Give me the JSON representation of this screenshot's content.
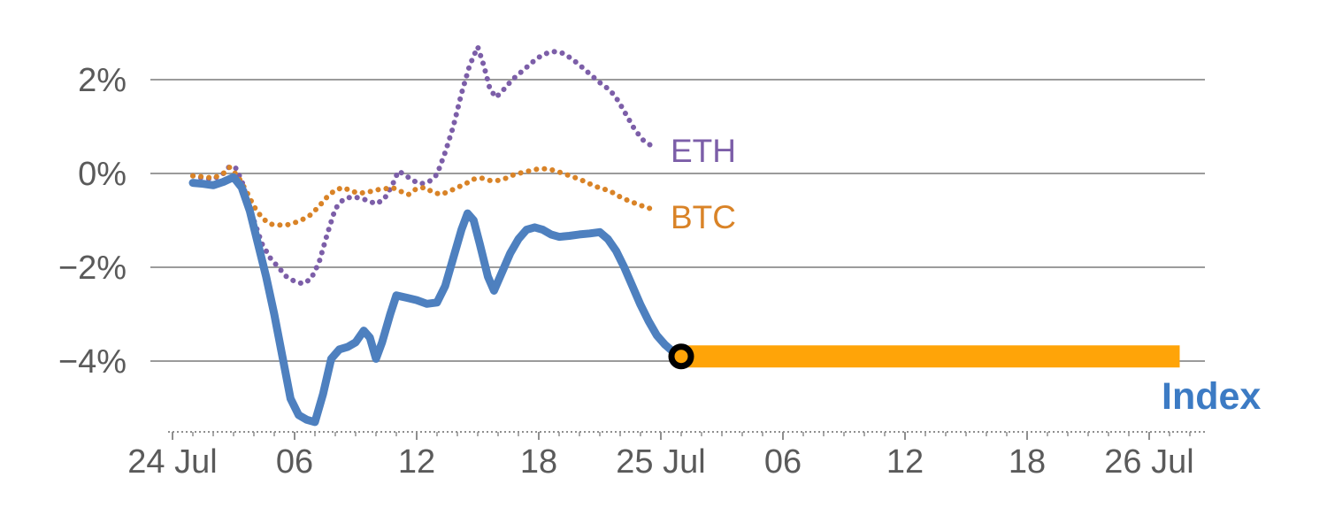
{
  "chart_data": {
    "type": "line",
    "title": "",
    "x_unit": "hours since 24 Jul 00:00",
    "xlim": [
      -1,
      51
    ],
    "ylim_percent": [
      -5.6,
      2.9
    ],
    "grid": "horizontal-only",
    "legend_position": "inline-labels",
    "yticks": [
      {
        "value": 2,
        "label": "2%"
      },
      {
        "value": 0,
        "label": "0%"
      },
      {
        "value": -2,
        "label": "−2%"
      },
      {
        "value": -4,
        "label": "−4%"
      }
    ],
    "xticks": [
      {
        "hour": 0,
        "label": "24 Jul"
      },
      {
        "hour": 6,
        "label": "06"
      },
      {
        "hour": 12,
        "label": "12"
      },
      {
        "hour": 18,
        "label": "18"
      },
      {
        "hour": 24,
        "label": "25 Jul"
      },
      {
        "hour": 30,
        "label": "06"
      },
      {
        "hour": 36,
        "label": "12"
      },
      {
        "hour": 42,
        "label": "18"
      },
      {
        "hour": 48,
        "label": "26 Jul"
      }
    ],
    "labels": {
      "eth": "ETH",
      "btc": "BTC",
      "index": "Index"
    },
    "colors": {
      "index_line": "#4e80bf",
      "index_label": "#3c7bc4",
      "eth": "#7c5ea8",
      "btc": "#d98327",
      "projection_bar": "#ffa408",
      "marker_stroke": "#000000",
      "grid": "#9b9b9b",
      "axis": "#8f8f8f",
      "tick_text": "#5a5a5a"
    },
    "series": [
      {
        "name": "Index",
        "style": "solid",
        "width": 9,
        "points": [
          [
            1,
            -0.2
          ],
          [
            1.5,
            -0.22
          ],
          [
            2,
            -0.25
          ],
          [
            2.5,
            -0.18
          ],
          [
            3,
            -0.08
          ],
          [
            3.4,
            -0.3
          ],
          [
            3.8,
            -0.8
          ],
          [
            4.2,
            -1.5
          ],
          [
            4.6,
            -2.2
          ],
          [
            5,
            -3.0
          ],
          [
            5.4,
            -3.9
          ],
          [
            5.8,
            -4.8
          ],
          [
            6.2,
            -5.15
          ],
          [
            6.6,
            -5.25
          ],
          [
            7,
            -5.3
          ],
          [
            7.4,
            -4.7
          ],
          [
            7.8,
            -3.95
          ],
          [
            8.2,
            -3.75
          ],
          [
            8.6,
            -3.7
          ],
          [
            9,
            -3.6
          ],
          [
            9.4,
            -3.35
          ],
          [
            9.7,
            -3.5
          ],
          [
            10,
            -3.95
          ],
          [
            10.3,
            -3.6
          ],
          [
            10.7,
            -3.0
          ],
          [
            11,
            -2.6
          ],
          [
            11.5,
            -2.65
          ],
          [
            12,
            -2.7
          ],
          [
            12.5,
            -2.78
          ],
          [
            13,
            -2.75
          ],
          [
            13.4,
            -2.4
          ],
          [
            13.8,
            -1.8
          ],
          [
            14.2,
            -1.2
          ],
          [
            14.5,
            -0.85
          ],
          [
            14.8,
            -1.0
          ],
          [
            15.1,
            -1.5
          ],
          [
            15.5,
            -2.2
          ],
          [
            15.8,
            -2.5
          ],
          [
            16.2,
            -2.1
          ],
          [
            16.6,
            -1.7
          ],
          [
            17,
            -1.4
          ],
          [
            17.4,
            -1.2
          ],
          [
            17.8,
            -1.15
          ],
          [
            18.2,
            -1.2
          ],
          [
            18.6,
            -1.3
          ],
          [
            19,
            -1.35
          ],
          [
            19.5,
            -1.33
          ],
          [
            20,
            -1.3
          ],
          [
            20.5,
            -1.28
          ],
          [
            21,
            -1.25
          ],
          [
            21.4,
            -1.4
          ],
          [
            21.8,
            -1.65
          ],
          [
            22.2,
            -2.0
          ],
          [
            22.6,
            -2.4
          ],
          [
            23,
            -2.8
          ],
          [
            23.4,
            -3.15
          ],
          [
            23.8,
            -3.45
          ],
          [
            24.2,
            -3.65
          ],
          [
            24.6,
            -3.8
          ],
          [
            25,
            -3.9
          ]
        ]
      },
      {
        "name": "ETH",
        "style": "dotted",
        "width": 6,
        "points": [
          [
            1,
            -0.05
          ],
          [
            1.5,
            -0.1
          ],
          [
            2,
            -0.12
          ],
          [
            2.5,
            0.0
          ],
          [
            2.8,
            0.15
          ],
          [
            3.1,
            0.12
          ],
          [
            3.4,
            -0.15
          ],
          [
            3.7,
            -0.6
          ],
          [
            4,
            -1.0
          ],
          [
            4.4,
            -1.5
          ],
          [
            4.8,
            -1.8
          ],
          [
            5.2,
            -2.0
          ],
          [
            5.6,
            -2.2
          ],
          [
            6,
            -2.3
          ],
          [
            6.4,
            -2.35
          ],
          [
            6.8,
            -2.25
          ],
          [
            7.2,
            -1.9
          ],
          [
            7.6,
            -1.3
          ],
          [
            8,
            -0.75
          ],
          [
            8.4,
            -0.55
          ],
          [
            8.8,
            -0.5
          ],
          [
            9.2,
            -0.52
          ],
          [
            9.6,
            -0.58
          ],
          [
            10,
            -0.65
          ],
          [
            10.4,
            -0.55
          ],
          [
            10.8,
            -0.25
          ],
          [
            11.1,
            0.05
          ],
          [
            11.4,
            -0.02
          ],
          [
            11.8,
            -0.15
          ],
          [
            12.2,
            -0.22
          ],
          [
            12.6,
            -0.18
          ],
          [
            13,
            -0.02
          ],
          [
            13.4,
            0.45
          ],
          [
            13.8,
            1.0
          ],
          [
            14.2,
            1.7
          ],
          [
            14.6,
            2.3
          ],
          [
            15,
            2.7
          ],
          [
            15.3,
            2.3
          ],
          [
            15.6,
            1.8
          ],
          [
            15.9,
            1.62
          ],
          [
            16.3,
            1.8
          ],
          [
            16.7,
            2.0
          ],
          [
            17.1,
            2.15
          ],
          [
            17.5,
            2.3
          ],
          [
            17.9,
            2.45
          ],
          [
            18.3,
            2.55
          ],
          [
            18.7,
            2.6
          ],
          [
            19.1,
            2.58
          ],
          [
            19.5,
            2.48
          ],
          [
            19.9,
            2.35
          ],
          [
            20.3,
            2.2
          ],
          [
            20.7,
            2.05
          ],
          [
            21.1,
            1.9
          ],
          [
            21.5,
            1.78
          ],
          [
            21.9,
            1.55
          ],
          [
            22.3,
            1.25
          ],
          [
            22.7,
            0.95
          ],
          [
            23.1,
            0.72
          ],
          [
            23.5,
            0.6
          ]
        ]
      },
      {
        "name": "BTC",
        "style": "dotted",
        "width": 6,
        "points": [
          [
            1,
            -0.05
          ],
          [
            1.5,
            -0.07
          ],
          [
            2,
            -0.1
          ],
          [
            2.5,
            0.0
          ],
          [
            2.8,
            0.13
          ],
          [
            3.2,
            -0.05
          ],
          [
            3.6,
            -0.35
          ],
          [
            4,
            -0.7
          ],
          [
            4.4,
            -0.95
          ],
          [
            4.8,
            -1.08
          ],
          [
            5.2,
            -1.1
          ],
          [
            5.6,
            -1.1
          ],
          [
            6,
            -1.05
          ],
          [
            6.4,
            -0.98
          ],
          [
            6.8,
            -0.88
          ],
          [
            7.2,
            -0.7
          ],
          [
            7.6,
            -0.5
          ],
          [
            8,
            -0.35
          ],
          [
            8.4,
            -0.3
          ],
          [
            8.8,
            -0.38
          ],
          [
            9.2,
            -0.42
          ],
          [
            9.6,
            -0.4
          ],
          [
            10,
            -0.35
          ],
          [
            10.4,
            -0.33
          ],
          [
            10.8,
            -0.3
          ],
          [
            11.2,
            -0.38
          ],
          [
            11.6,
            -0.45
          ],
          [
            12,
            -0.32
          ],
          [
            12.4,
            -0.3
          ],
          [
            12.8,
            -0.4
          ],
          [
            13.2,
            -0.45
          ],
          [
            13.6,
            -0.38
          ],
          [
            14,
            -0.3
          ],
          [
            14.4,
            -0.22
          ],
          [
            14.8,
            -0.12
          ],
          [
            15.2,
            -0.1
          ],
          [
            15.6,
            -0.15
          ],
          [
            16,
            -0.15
          ],
          [
            16.4,
            -0.1
          ],
          [
            16.8,
            -0.02
          ],
          [
            17.2,
            0.02
          ],
          [
            17.6,
            0.06
          ],
          [
            18,
            0.1
          ],
          [
            18.4,
            0.1
          ],
          [
            18.8,
            0.06
          ],
          [
            19.2,
            0.0
          ],
          [
            19.6,
            -0.06
          ],
          [
            20,
            -0.12
          ],
          [
            20.4,
            -0.2
          ],
          [
            20.8,
            -0.28
          ],
          [
            21.2,
            -0.33
          ],
          [
            21.6,
            -0.4
          ],
          [
            22,
            -0.5
          ],
          [
            22.4,
            -0.58
          ],
          [
            23,
            -0.68
          ],
          [
            23.5,
            -0.75
          ]
        ]
      }
    ],
    "projection_bar": {
      "series": "Index",
      "value": -3.9,
      "from_hour": 25,
      "to_hour": 49.5,
      "thickness": 25
    },
    "endpoint_marker": {
      "hour": 25,
      "value": -3.9,
      "outer_radius": 11,
      "ring_width": 7
    }
  }
}
